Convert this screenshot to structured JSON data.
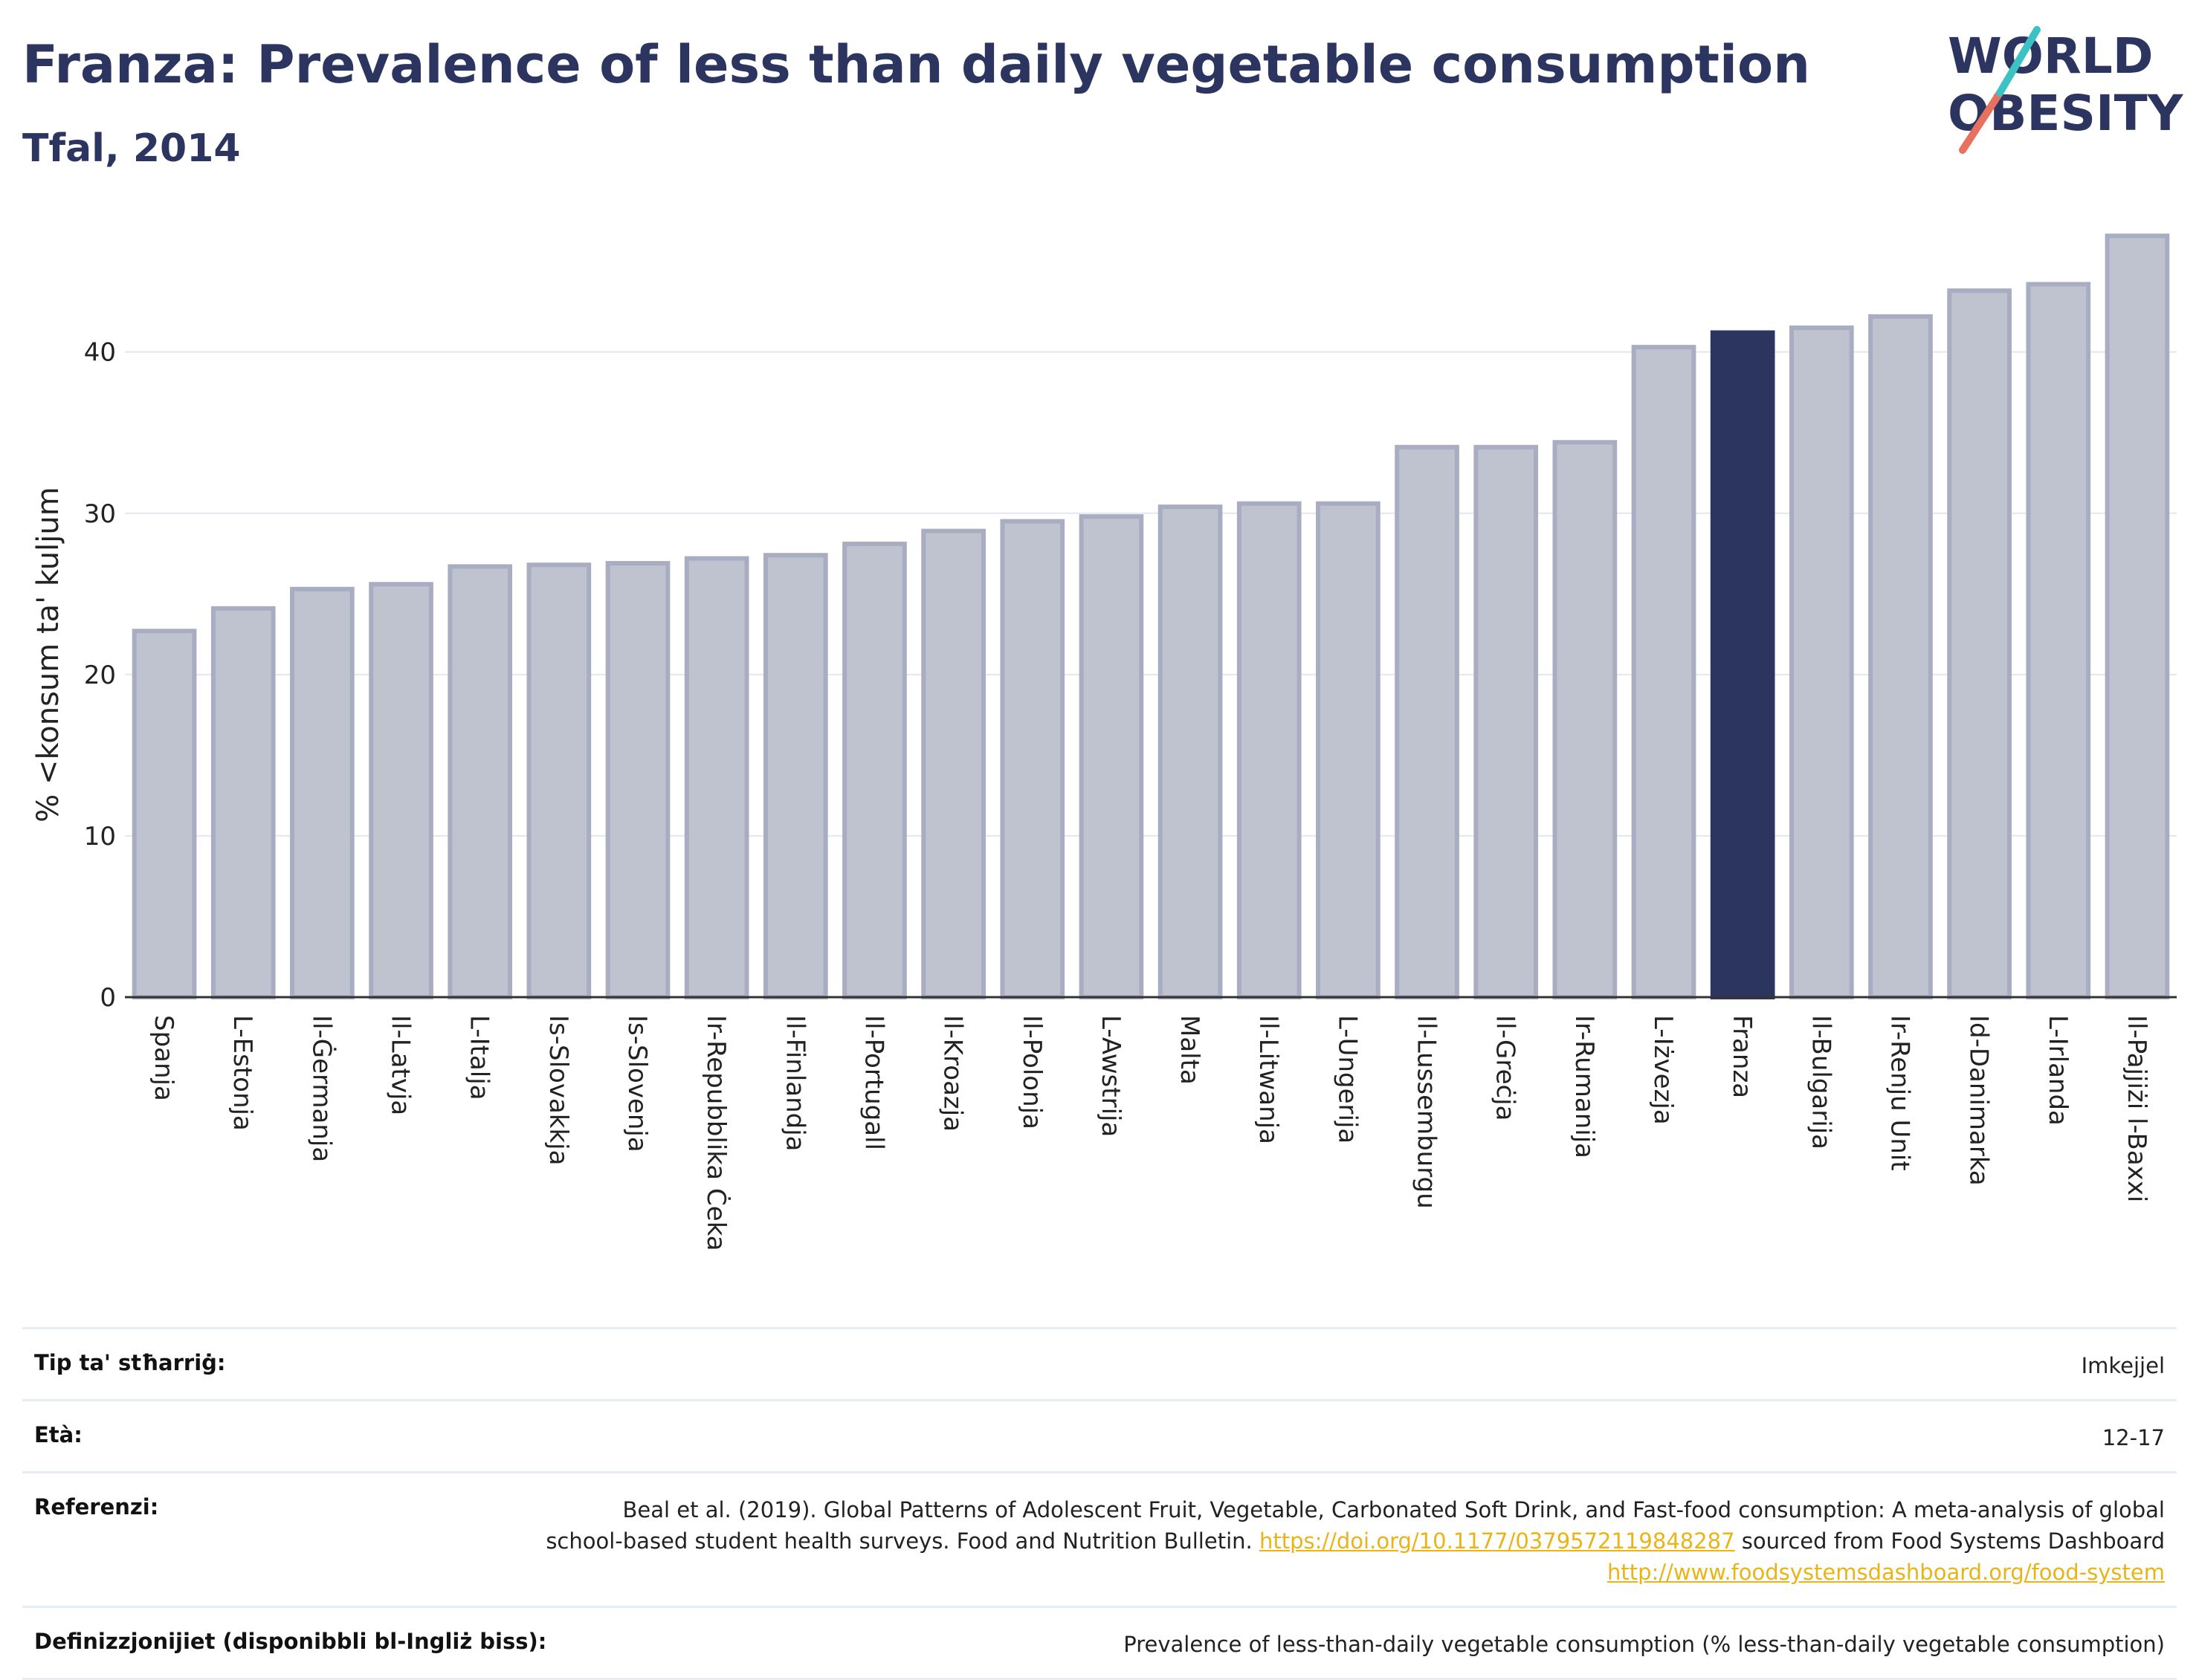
{
  "header": {
    "title": "Franza: Prevalence of less than daily vegetable consumption",
    "subtitle": "Tfal, 2014"
  },
  "logo": {
    "line1": "WORLD",
    "line2": "OBESITY"
  },
  "chart_data": {
    "type": "bar",
    "title": "Franza: Prevalence of less than daily vegetable consumption",
    "subtitle": "Tfal, 2014",
    "xlabel": "",
    "ylabel": "% <konsum ta' kuljum",
    "ylim": [
      0,
      48
    ],
    "yticks": [
      0,
      10,
      20,
      30,
      40
    ],
    "grid": true,
    "highlight": "Franza",
    "colors": {
      "default": "#bfc3d0",
      "default_border": "#a8adc2",
      "highlight": "#2b3560"
    },
    "categories": [
      "Spanja",
      "L-Estonja",
      "Il-Ġermanja",
      "Il-Latvja",
      "L-Italja",
      "Is-Slovakkja",
      "Is-Slovenja",
      "Ir-Repubblika Ċeka",
      "Il-Finlandja",
      "Il-Portugall",
      "Il-Kroazja",
      "Il-Polonja",
      "L-Awstrija",
      "Malta",
      "Il-Litwanja",
      "L-Ungerija",
      "Il-Lussemburgu",
      "Il-Greċja",
      "Ir-Rumanija",
      "L-Iżvezja",
      "Franza",
      "Il-Bulgarija",
      "Ir-Renju Unit",
      "Id-Danimarka",
      "L-Irlanda",
      "Il-Pajjiżi l-Baxxi"
    ],
    "values": [
      22.7,
      24.1,
      25.3,
      25.6,
      26.7,
      26.8,
      26.9,
      27.2,
      27.4,
      28.1,
      28.9,
      29.5,
      29.8,
      30.4,
      30.6,
      30.6,
      34.1,
      34.1,
      34.4,
      40.3,
      41.2,
      41.5,
      42.2,
      43.8,
      44.2,
      47.2
    ]
  },
  "meta": [
    {
      "key": "Tip ta' stħarriġ:",
      "value": "Imkejjel"
    },
    {
      "key": "Età:",
      "value": "12-17"
    },
    {
      "key": "Referenzi:",
      "value_parts": {
        "text1": "Beal et al. (2019). Global Patterns of Adolescent Fruit, Vegetable, Carbonated Soft Drink, and Fast-food consumption: A meta-analysis of global school-based student health surveys. Food and Nutrition Bulletin. ",
        "link1": "https://doi.org/10.1177/0379572119848287",
        "text2": " sourced from Food Systems Dashboard ",
        "link2": "http://www.foodsystemsdashboard.org/food-system"
      }
    },
    {
      "key": "Definizzjonijiet (disponibbli bl-Ingliż biss):",
      "value": "Prevalence of less-than-daily vegetable consumption (% less-than-daily vegetable consumption)"
    }
  ]
}
